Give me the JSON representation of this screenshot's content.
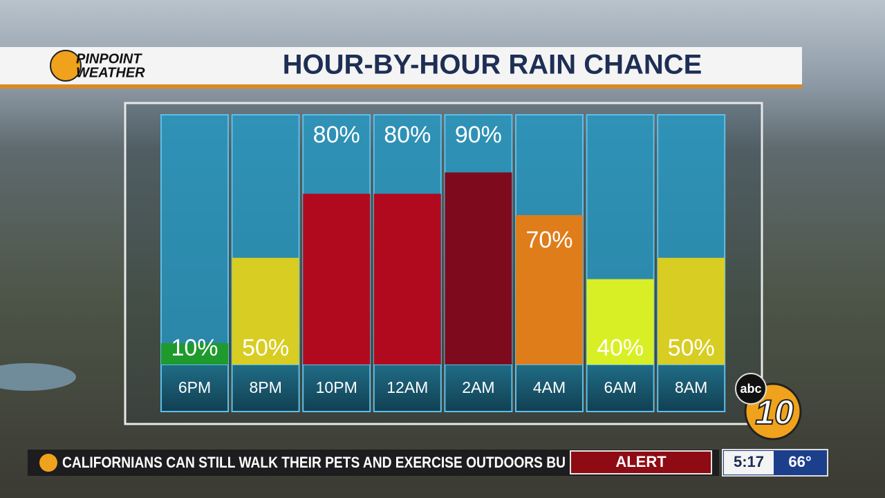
{
  "chart_data": {
    "type": "bar",
    "title": "HOUR-BY-HOUR RAIN CHANCE",
    "categories": [
      "6PM",
      "8PM",
      "10PM",
      "12AM",
      "2AM",
      "4AM",
      "6AM",
      "8AM"
    ],
    "values": [
      10,
      50,
      80,
      80,
      90,
      70,
      40,
      50
    ],
    "value_labels": [
      "10%",
      "50%",
      "80%",
      "80%",
      "90%",
      "70%",
      "40%",
      "50%"
    ],
    "colors": [
      "#1f9a2c",
      "#d8cd22",
      "#b10a1e",
      "#b10a1e",
      "#7e0b1d",
      "#e07d1b",
      "#d9ef25",
      "#d8cd22"
    ],
    "ylim": [
      0,
      117
    ]
  },
  "branding": {
    "logo_line1": "PINPOINT",
    "logo_line2": "WEATHER",
    "network": "abc",
    "channel": "10"
  },
  "ticker": {
    "text": "CALIFORNIANS CAN STILL WALK THEIR PETS AND EXERCISE OUTDOORS BU",
    "alert": "ALERT",
    "time": "5:17",
    "temperature": "66°"
  }
}
